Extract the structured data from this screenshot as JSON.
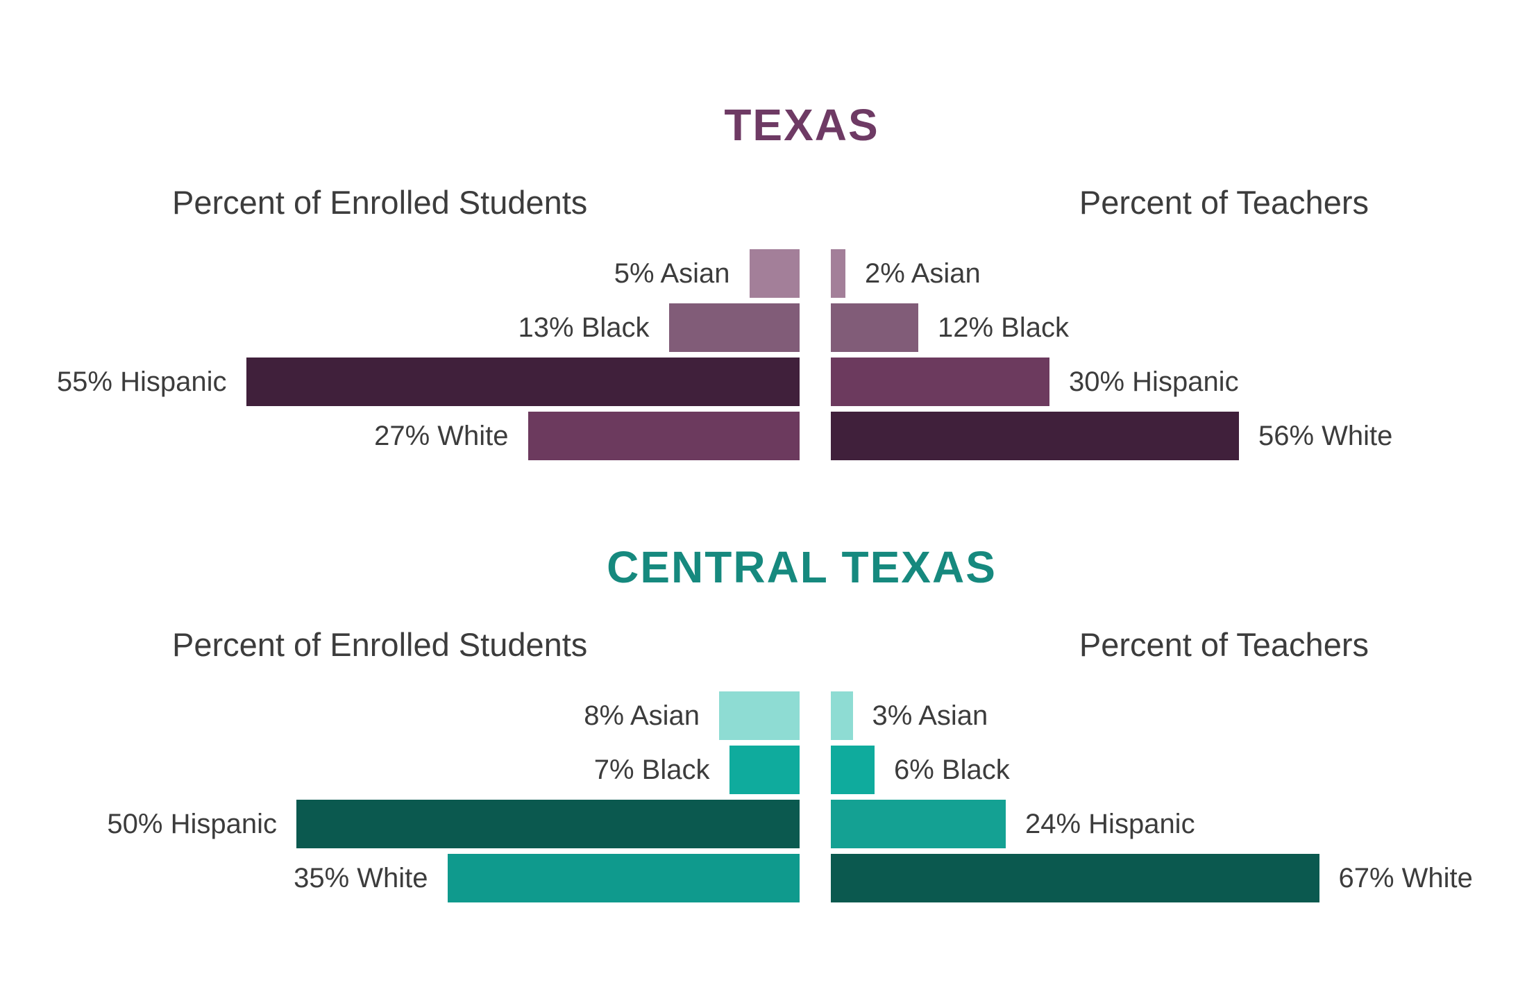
{
  "page": {
    "background": "#ffffff",
    "text_color": "#3c3c3c"
  },
  "charts": [
    {
      "title": "TEXAS",
      "title_color": "#6e3a64",
      "left_header": "Percent of Enrolled Students",
      "right_header": "Percent of Teachers",
      "rows": [
        {
          "category": "Asian",
          "left": {
            "label": "5% Asian",
            "value": 5,
            "color": "#a37f99"
          },
          "right": {
            "label": "2% Asian",
            "value": 2,
            "color": "#a37f99"
          }
        },
        {
          "category": "Black",
          "left": {
            "label": "13% Black",
            "value": 13,
            "color": "#815c78"
          },
          "right": {
            "label": "12% Black",
            "value": 12,
            "color": "#815c78"
          }
        },
        {
          "category": "Hispanic",
          "left": {
            "label": "55% Hispanic",
            "value": 55,
            "color": "#40203b"
          },
          "right": {
            "label": "30% Hispanic",
            "value": 30,
            "color": "#6c3a5e"
          }
        },
        {
          "category": "White",
          "left": {
            "label": "27% White",
            "value": 27,
            "color": "#6c3a5e"
          },
          "right": {
            "label": "56% White",
            "value": 56,
            "color": "#40203b"
          }
        }
      ]
    },
    {
      "title": "CENTRAL TEXAS",
      "title_color": "#16897e",
      "left_header": "Percent of Enrolled Students",
      "right_header": "Percent of Teachers",
      "rows": [
        {
          "category": "Asian",
          "left": {
            "label": "8% Asian",
            "value": 8,
            "color": "#8edcd3"
          },
          "right": {
            "label": "3% Asian",
            "value": 3,
            "color": "#8edcd3"
          }
        },
        {
          "category": "Black",
          "left": {
            "label": "7% Black",
            "value": 7,
            "color": "#0fab9d"
          },
          "right": {
            "label": "6% Black",
            "value": 6,
            "color": "#0fab9d"
          }
        },
        {
          "category": "Hispanic",
          "left": {
            "label": "50% Hispanic",
            "value": 50,
            "color": "#0b594f"
          },
          "right": {
            "label": "24% Hispanic",
            "value": 24,
            "color": "#14a193"
          }
        },
        {
          "category": "White",
          "left": {
            "label": "35% White",
            "value": 35,
            "color": "#0f9a8d"
          },
          "right": {
            "label": "67% White",
            "value": 67,
            "color": "#0b594f"
          }
        }
      ]
    }
  ],
  "chart_data": [
    {
      "type": "bar",
      "subtype": "diverging-horizontal-pyramid",
      "title": "TEXAS",
      "categories": [
        "Asian",
        "Black",
        "Hispanic",
        "White"
      ],
      "series": [
        {
          "name": "Percent of Enrolled Students",
          "side": "left",
          "values": [
            5,
            13,
            55,
            27
          ]
        },
        {
          "name": "Percent of Teachers",
          "side": "right",
          "values": [
            2,
            12,
            30,
            56
          ]
        }
      ],
      "value_unit": "%",
      "grid": false,
      "legend_position": "column-headers"
    },
    {
      "type": "bar",
      "subtype": "diverging-horizontal-pyramid",
      "title": "CENTRAL TEXAS",
      "categories": [
        "Asian",
        "Black",
        "Hispanic",
        "White"
      ],
      "series": [
        {
          "name": "Percent of Enrolled Students",
          "side": "left",
          "values": [
            8,
            7,
            50,
            35
          ]
        },
        {
          "name": "Percent of Teachers",
          "side": "right",
          "values": [
            3,
            6,
            24,
            67
          ]
        }
      ],
      "value_unit": "%",
      "grid": false,
      "legend_position": "column-headers"
    }
  ]
}
